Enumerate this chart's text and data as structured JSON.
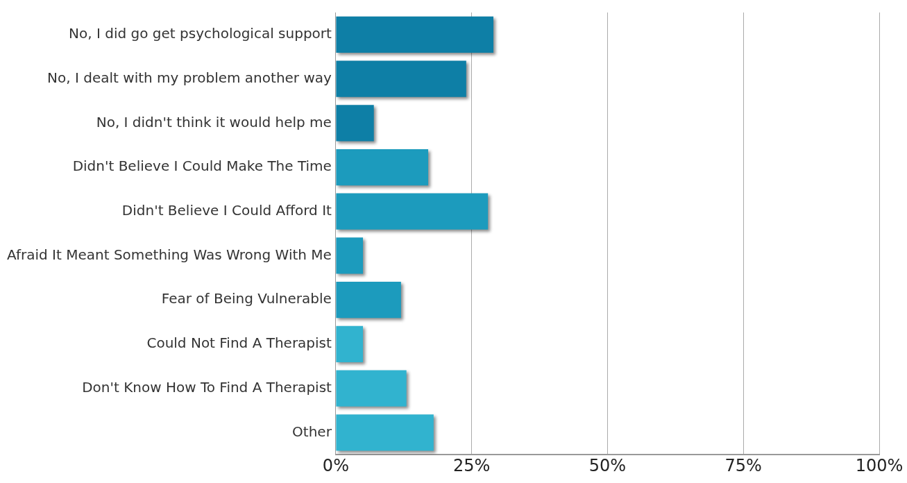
{
  "chart_data": {
    "type": "bar",
    "orientation": "horizontal",
    "categories": [
      "No, I did go get psychological support",
      "No, I dealt with my problem another way",
      "No, I didn't think it would help me",
      "Didn't Believe I Could Make The Time",
      "Didn't Believe I Could Afford It",
      "Afraid It Meant Something Was Wrong With Me",
      "Fear of Being Vulnerable",
      "Could Not Find A Therapist",
      "Don't Know How To Find A Therapist",
      "Other"
    ],
    "values": [
      29,
      24,
      7,
      17,
      28,
      5,
      12,
      5,
      13,
      18
    ],
    "colors": [
      "#0e7fa6",
      "#0e7fa6",
      "#0e7fa6",
      "#1c9bbd",
      "#1c9bbd",
      "#1c9bbd",
      "#1c9bbd",
      "#31b3cf",
      "#31b3cf",
      "#31b3cf"
    ],
    "xlim": [
      0,
      100
    ],
    "xticks": [
      {
        "value": 0,
        "label": "0%"
      },
      {
        "value": 25,
        "label": "25%"
      },
      {
        "value": 50,
        "label": "50%"
      },
      {
        "value": 75,
        "label": "75%"
      },
      {
        "value": 100,
        "label": "100%"
      }
    ],
    "grid": "x",
    "legend": false
  }
}
